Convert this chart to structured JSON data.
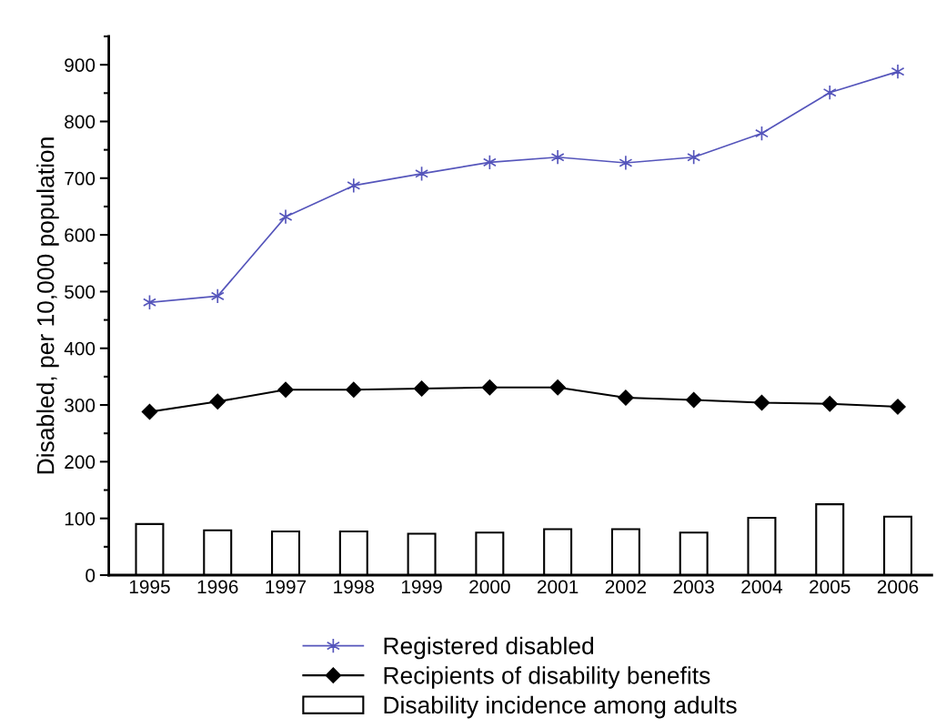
{
  "chart_data": {
    "type": "line",
    "ylabel": "Disabled, per 10,000 population",
    "categories": [
      "1995",
      "1996",
      "1997",
      "1998",
      "1999",
      "2000",
      "2001",
      "2002",
      "2003",
      "2004",
      "2005",
      "2006"
    ],
    "series": [
      {
        "name": "Registered disabled",
        "color": "#5555bb",
        "marker": "cross",
        "values": [
          481,
          492,
          632,
          687,
          708,
          728,
          737,
          727,
          737,
          779,
          851,
          888
        ]
      },
      {
        "name": "Recipients of disability benefits",
        "color": "#000000",
        "marker": "diamond",
        "values": [
          288,
          306,
          327,
          327,
          329,
          331,
          331,
          313,
          309,
          304,
          302,
          297
        ]
      },
      {
        "name": "Disability incidence among adults",
        "type": "bar",
        "color": "#ffffff",
        "values": [
          90,
          79,
          77,
          77,
          73,
          75,
          81,
          81,
          75,
          101,
          125,
          103
        ]
      }
    ],
    "ylim": [
      0,
      950
    ],
    "yticks": [
      0,
      100,
      200,
      300,
      400,
      500,
      600,
      700,
      800,
      900
    ],
    "grid": false,
    "legend": "bottom"
  }
}
